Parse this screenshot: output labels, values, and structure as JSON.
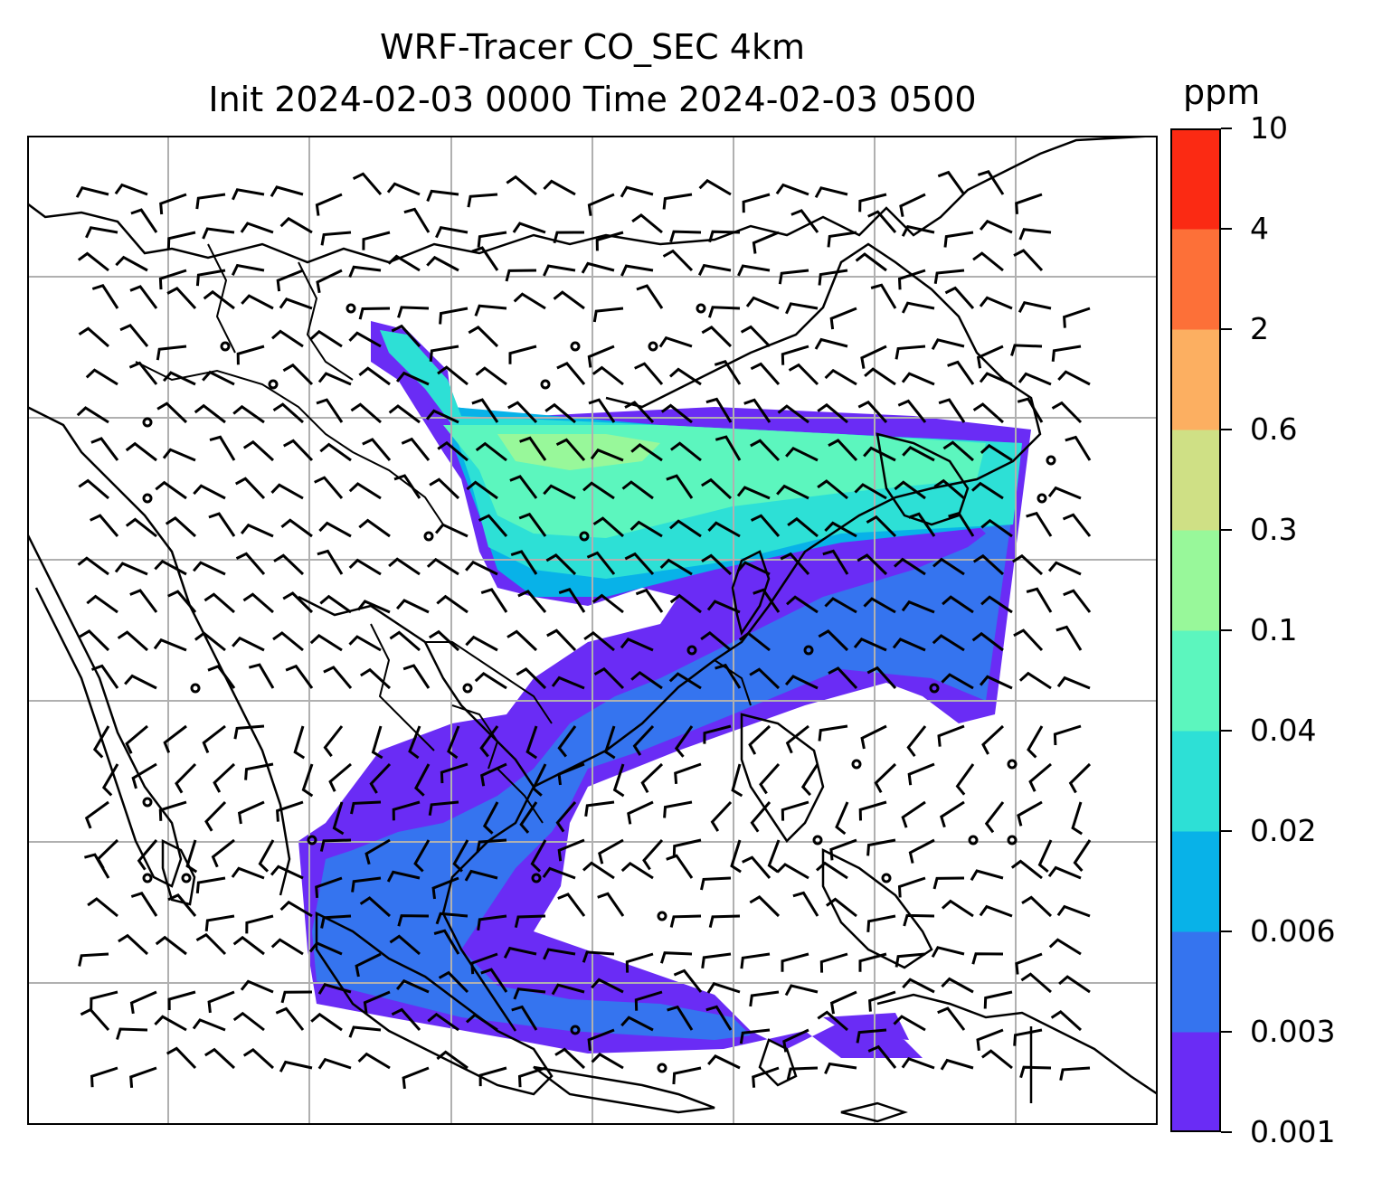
{
  "title": {
    "line1": "WRF-Tracer CO_SEC 4km",
    "line2": "Init 2024-02-03 0000 Time 2024-02-03 0500"
  },
  "colorbar": {
    "unit": "ppm",
    "levels": [
      "0.001",
      "0.003",
      "0.006",
      "0.02",
      "0.04",
      "0.1",
      "0.3",
      "0.6",
      "2",
      "4",
      "10"
    ],
    "colors": [
      "#6a2cf5",
      "#3574ef",
      "#08b2e8",
      "#2de0d6",
      "#5cf6be",
      "#98f89a",
      "#cfe085",
      "#fcaf61",
      "#fd7038",
      "#fb2a13"
    ]
  },
  "map": {
    "layers": [
      "coastlines",
      "country-borders",
      "gridlines",
      "co-concentration-fill",
      "wind-barbs"
    ],
    "gridline_color": "#b0b0b0"
  }
}
